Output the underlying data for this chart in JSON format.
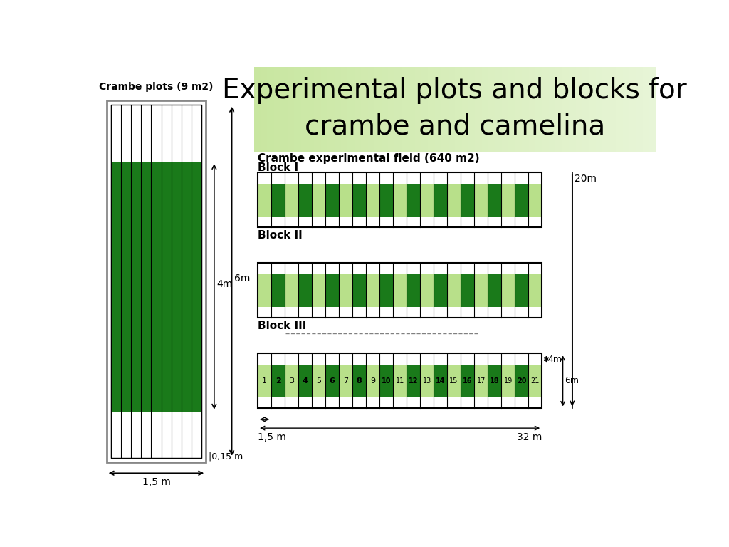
{
  "title": "Experimental plots and blocks for\ncrambe and camelina",
  "title_bg": "#c8e6a0",
  "title_bg2": "#e8f5c8",
  "bg_color": "#ffffff",
  "dark_green": "#1a7a1a",
  "light_green": "#b8e08a",
  "crambe_label": "Crambe plots (9 m2)",
  "field_label": "Crambe experimental field (640 m2)",
  "block_labels": [
    "Block I",
    "Block II",
    "Block III"
  ],
  "num_strips_crambe": 9,
  "num_plots": 21,
  "plot_numbers": [
    1,
    2,
    3,
    4,
    5,
    6,
    7,
    8,
    9,
    10,
    11,
    12,
    13,
    14,
    15,
    16,
    17,
    18,
    19,
    20,
    21
  ],
  "bold_plots": [
    2,
    4,
    6,
    8,
    10,
    12,
    14,
    16,
    18,
    20
  ]
}
